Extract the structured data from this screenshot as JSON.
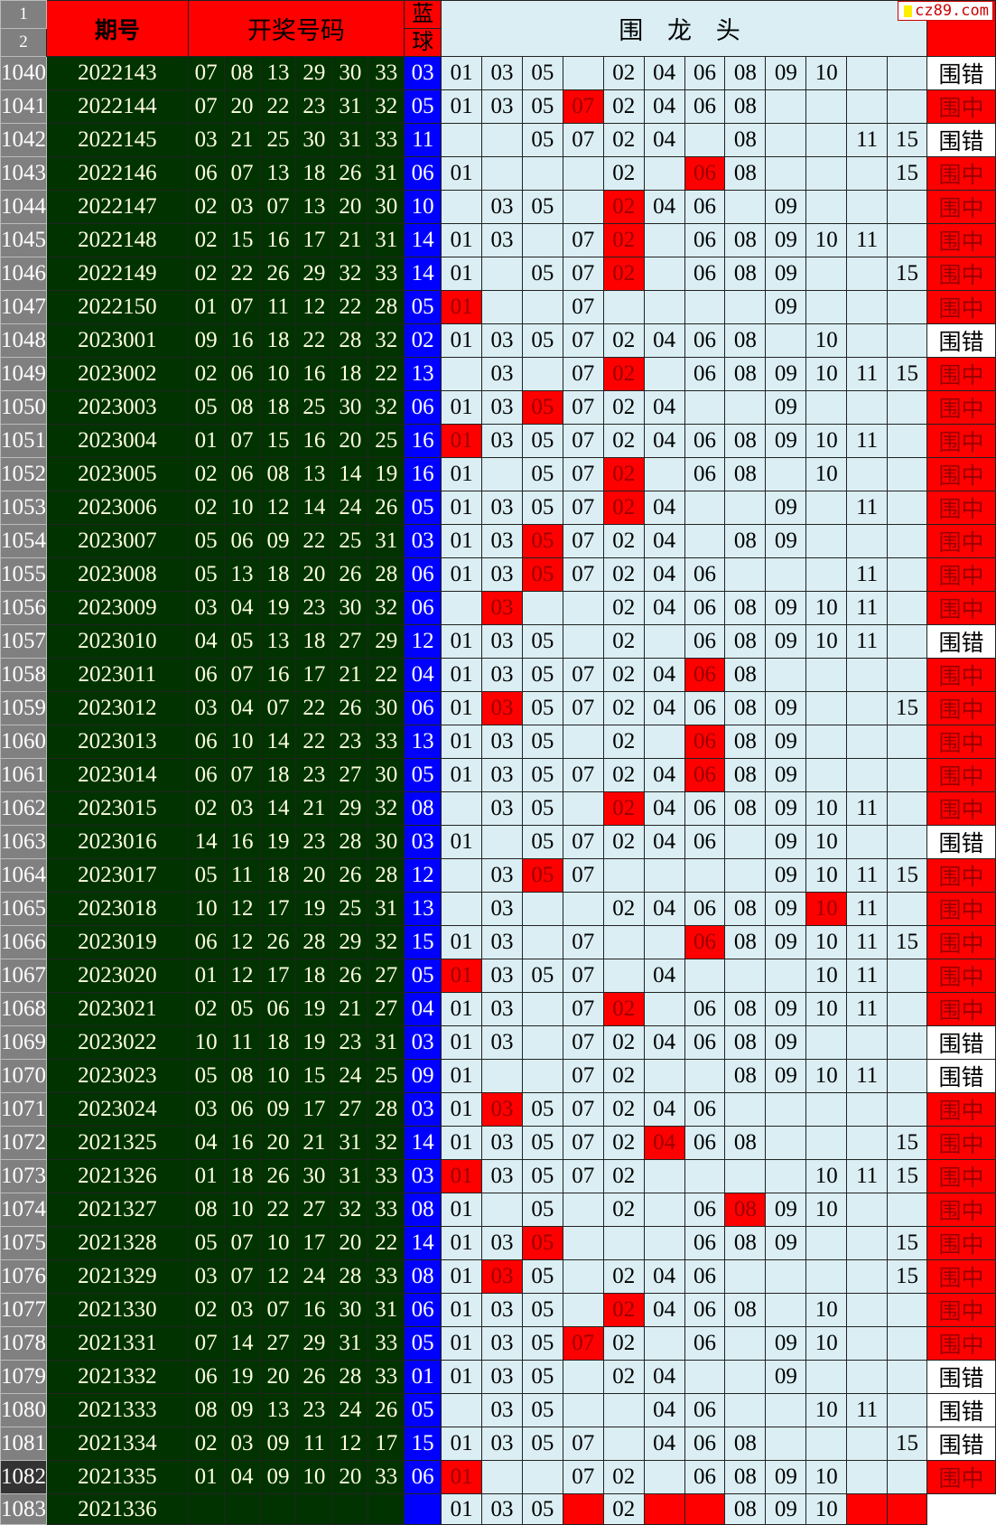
{
  "header": {
    "row_numbers": [
      "1",
      "2"
    ],
    "period": "期号",
    "draw_numbers": "开奖号码",
    "blue_ball_line1": "蓝",
    "blue_ball_line2": "球",
    "wei_long_tou": "围 龙 头"
  },
  "watermark": "cz89.com",
  "colors": {
    "header_red": "#ff0000",
    "period_green": "#003300",
    "blue_ball": "#0000ff",
    "cell_bg": "#daeef3",
    "hit_red": "#ff0000"
  },
  "rows": [
    {
      "n": "1040",
      "period": "2022143",
      "reds": [
        "07",
        "08",
        "13",
        "29",
        "30",
        "33"
      ],
      "blue": "03",
      "cells": [
        "01",
        "03",
        "05",
        "",
        "02",
        "04",
        "06",
        "08",
        "09",
        "10",
        "",
        ""
      ],
      "hits": [],
      "result": "围错"
    },
    {
      "n": "1041",
      "period": "2022144",
      "reds": [
        "07",
        "20",
        "22",
        "23",
        "31",
        "32"
      ],
      "blue": "05",
      "cells": [
        "01",
        "03",
        "05",
        "07",
        "02",
        "04",
        "06",
        "08",
        "",
        "",
        "",
        ""
      ],
      "hits": [
        3
      ],
      "result": "围中"
    },
    {
      "n": "1042",
      "period": "2022145",
      "reds": [
        "03",
        "21",
        "25",
        "30",
        "31",
        "33"
      ],
      "blue": "11",
      "cells": [
        "",
        "",
        "05",
        "07",
        "02",
        "04",
        "",
        "08",
        "",
        "",
        "11",
        "15"
      ],
      "hits": [],
      "result": "围错"
    },
    {
      "n": "1043",
      "period": "2022146",
      "reds": [
        "06",
        "07",
        "13",
        "18",
        "26",
        "31"
      ],
      "blue": "06",
      "cells": [
        "01",
        "",
        "",
        "",
        "02",
        "",
        "06",
        "08",
        "",
        "",
        "",
        "15"
      ],
      "hits": [
        6
      ],
      "result": "围中"
    },
    {
      "n": "1044",
      "period": "2022147",
      "reds": [
        "02",
        "03",
        "07",
        "13",
        "20",
        "30"
      ],
      "blue": "10",
      "cells": [
        "",
        "03",
        "05",
        "",
        "02",
        "04",
        "06",
        "",
        "09",
        "",
        "",
        ""
      ],
      "hits": [
        4
      ],
      "result": "围中"
    },
    {
      "n": "1045",
      "period": "2022148",
      "reds": [
        "02",
        "15",
        "16",
        "17",
        "21",
        "31"
      ],
      "blue": "14",
      "cells": [
        "01",
        "03",
        "",
        "07",
        "02",
        "",
        "06",
        "08",
        "09",
        "10",
        "11",
        ""
      ],
      "hits": [
        4
      ],
      "result": "围中"
    },
    {
      "n": "1046",
      "period": "2022149",
      "reds": [
        "02",
        "22",
        "26",
        "29",
        "32",
        "33"
      ],
      "blue": "14",
      "cells": [
        "01",
        "",
        "05",
        "07",
        "02",
        "",
        "06",
        "08",
        "09",
        "",
        "",
        "15"
      ],
      "hits": [
        4
      ],
      "result": "围中"
    },
    {
      "n": "1047",
      "period": "2022150",
      "reds": [
        "01",
        "07",
        "11",
        "12",
        "22",
        "28"
      ],
      "blue": "05",
      "cells": [
        "01",
        "",
        "",
        "07",
        "",
        "",
        "",
        "",
        "09",
        "",
        "",
        ""
      ],
      "hits": [
        0
      ],
      "result": "围中"
    },
    {
      "n": "1048",
      "period": "2023001",
      "reds": [
        "09",
        "16",
        "18",
        "22",
        "28",
        "32"
      ],
      "blue": "02",
      "cells": [
        "01",
        "03",
        "05",
        "07",
        "02",
        "04",
        "06",
        "08",
        "",
        "10",
        "",
        ""
      ],
      "hits": [],
      "result": "围错"
    },
    {
      "n": "1049",
      "period": "2023002",
      "reds": [
        "02",
        "06",
        "10",
        "16",
        "18",
        "22"
      ],
      "blue": "13",
      "cells": [
        "",
        "03",
        "",
        "07",
        "02",
        "",
        "06",
        "08",
        "09",
        "10",
        "11",
        "15"
      ],
      "hits": [
        4
      ],
      "result": "围中"
    },
    {
      "n": "1050",
      "period": "2023003",
      "reds": [
        "05",
        "08",
        "18",
        "25",
        "30",
        "32"
      ],
      "blue": "06",
      "cells": [
        "01",
        "03",
        "05",
        "07",
        "02",
        "04",
        "",
        "",
        "09",
        "",
        "",
        ""
      ],
      "hits": [
        2
      ],
      "result": "围中"
    },
    {
      "n": "1051",
      "period": "2023004",
      "reds": [
        "01",
        "07",
        "15",
        "16",
        "20",
        "25"
      ],
      "blue": "16",
      "cells": [
        "01",
        "03",
        "05",
        "07",
        "02",
        "04",
        "06",
        "08",
        "09",
        "10",
        "11",
        ""
      ],
      "hits": [
        0
      ],
      "result": "围中"
    },
    {
      "n": "1052",
      "period": "2023005",
      "reds": [
        "02",
        "06",
        "08",
        "13",
        "14",
        "19"
      ],
      "blue": "16",
      "cells": [
        "01",
        "",
        "05",
        "07",
        "02",
        "",
        "06",
        "08",
        "",
        "10",
        "",
        ""
      ],
      "hits": [
        4
      ],
      "result": "围中"
    },
    {
      "n": "1053",
      "period": "2023006",
      "reds": [
        "02",
        "10",
        "12",
        "14",
        "24",
        "26"
      ],
      "blue": "05",
      "cells": [
        "01",
        "03",
        "05",
        "07",
        "02",
        "04",
        "",
        "",
        "09",
        "",
        "11",
        ""
      ],
      "hits": [
        4
      ],
      "result": "围中"
    },
    {
      "n": "1054",
      "period": "2023007",
      "reds": [
        "05",
        "06",
        "09",
        "22",
        "25",
        "31"
      ],
      "blue": "03",
      "cells": [
        "01",
        "03",
        "05",
        "07",
        "02",
        "04",
        "",
        "08",
        "09",
        "",
        "",
        ""
      ],
      "hits": [
        2
      ],
      "result": "围中"
    },
    {
      "n": "1055",
      "period": "2023008",
      "reds": [
        "05",
        "13",
        "18",
        "20",
        "26",
        "28"
      ],
      "blue": "06",
      "cells": [
        "01",
        "03",
        "05",
        "07",
        "02",
        "04",
        "06",
        "",
        "",
        "",
        "11",
        ""
      ],
      "hits": [
        2
      ],
      "result": "围中"
    },
    {
      "n": "1056",
      "period": "2023009",
      "reds": [
        "03",
        "04",
        "19",
        "23",
        "30",
        "32"
      ],
      "blue": "06",
      "cells": [
        "",
        "03",
        "",
        "",
        "02",
        "04",
        "06",
        "08",
        "09",
        "10",
        "11",
        ""
      ],
      "hits": [
        1
      ],
      "result": "围中"
    },
    {
      "n": "1057",
      "period": "2023010",
      "reds": [
        "04",
        "05",
        "13",
        "18",
        "27",
        "29"
      ],
      "blue": "12",
      "cells": [
        "01",
        "03",
        "05",
        "",
        "02",
        "",
        "06",
        "08",
        "09",
        "10",
        "11",
        ""
      ],
      "hits": [],
      "result": "围错"
    },
    {
      "n": "1058",
      "period": "2023011",
      "reds": [
        "06",
        "07",
        "16",
        "17",
        "21",
        "22"
      ],
      "blue": "04",
      "cells": [
        "01",
        "03",
        "05",
        "07",
        "02",
        "04",
        "06",
        "08",
        "",
        "",
        "",
        ""
      ],
      "hits": [
        6
      ],
      "result": "围中"
    },
    {
      "n": "1059",
      "period": "2023012",
      "reds": [
        "03",
        "04",
        "07",
        "22",
        "26",
        "30"
      ],
      "blue": "06",
      "cells": [
        "01",
        "03",
        "05",
        "07",
        "02",
        "04",
        "06",
        "08",
        "09",
        "",
        "",
        "15"
      ],
      "hits": [
        1
      ],
      "result": "围中"
    },
    {
      "n": "1060",
      "period": "2023013",
      "reds": [
        "06",
        "10",
        "14",
        "22",
        "23",
        "33"
      ],
      "blue": "13",
      "cells": [
        "01",
        "03",
        "05",
        "",
        "02",
        "",
        "06",
        "08",
        "09",
        "",
        "",
        ""
      ],
      "hits": [
        6
      ],
      "result": "围中"
    },
    {
      "n": "1061",
      "period": "2023014",
      "reds": [
        "06",
        "07",
        "18",
        "23",
        "27",
        "30"
      ],
      "blue": "05",
      "cells": [
        "01",
        "03",
        "05",
        "07",
        "02",
        "04",
        "06",
        "08",
        "09",
        "",
        "",
        ""
      ],
      "hits": [
        6
      ],
      "result": "围中"
    },
    {
      "n": "1062",
      "period": "2023015",
      "reds": [
        "02",
        "03",
        "14",
        "21",
        "29",
        "32"
      ],
      "blue": "08",
      "cells": [
        "",
        "03",
        "05",
        "",
        "02",
        "04",
        "06",
        "08",
        "09",
        "10",
        "11",
        ""
      ],
      "hits": [
        4
      ],
      "result": "围中"
    },
    {
      "n": "1063",
      "period": "2023016",
      "reds": [
        "14",
        "16",
        "19",
        "23",
        "28",
        "30"
      ],
      "blue": "03",
      "cells": [
        "01",
        "",
        "05",
        "07",
        "02",
        "04",
        "06",
        "",
        "09",
        "10",
        "",
        ""
      ],
      "hits": [],
      "result": "围错"
    },
    {
      "n": "1064",
      "period": "2023017",
      "reds": [
        "05",
        "11",
        "18",
        "20",
        "26",
        "28"
      ],
      "blue": "12",
      "cells": [
        "",
        "03",
        "05",
        "07",
        "",
        "",
        "",
        "",
        "09",
        "10",
        "11",
        "15"
      ],
      "hits": [
        2
      ],
      "result": "围中"
    },
    {
      "n": "1065",
      "period": "2023018",
      "reds": [
        "10",
        "12",
        "17",
        "19",
        "25",
        "31"
      ],
      "blue": "13",
      "cells": [
        "",
        "03",
        "",
        "",
        "02",
        "04",
        "06",
        "08",
        "09",
        "10",
        "11",
        ""
      ],
      "hits": [
        9
      ],
      "result": "围中"
    },
    {
      "n": "1066",
      "period": "2023019",
      "reds": [
        "06",
        "12",
        "26",
        "28",
        "29",
        "32"
      ],
      "blue": "15",
      "cells": [
        "01",
        "03",
        "",
        "07",
        "",
        "",
        "06",
        "08",
        "09",
        "10",
        "11",
        "15"
      ],
      "hits": [
        6
      ],
      "result": "围中"
    },
    {
      "n": "1067",
      "period": "2023020",
      "reds": [
        "01",
        "12",
        "17",
        "18",
        "26",
        "27"
      ],
      "blue": "05",
      "cells": [
        "01",
        "03",
        "05",
        "07",
        "",
        "04",
        "",
        "",
        "",
        "10",
        "11",
        ""
      ],
      "hits": [
        0
      ],
      "result": "围中"
    },
    {
      "n": "1068",
      "period": "2023021",
      "reds": [
        "02",
        "05",
        "06",
        "19",
        "21",
        "27"
      ],
      "blue": "04",
      "cells": [
        "01",
        "03",
        "",
        "07",
        "02",
        "",
        "06",
        "08",
        "09",
        "10",
        "11",
        ""
      ],
      "hits": [
        4
      ],
      "result": "围中"
    },
    {
      "n": "1069",
      "period": "2023022",
      "reds": [
        "10",
        "11",
        "18",
        "19",
        "23",
        "31"
      ],
      "blue": "03",
      "cells": [
        "01",
        "03",
        "",
        "07",
        "02",
        "04",
        "06",
        "08",
        "09",
        "",
        "",
        ""
      ],
      "hits": [],
      "result": "围错"
    },
    {
      "n": "1070",
      "period": "2023023",
      "reds": [
        "05",
        "08",
        "10",
        "15",
        "24",
        "25"
      ],
      "blue": "09",
      "cells": [
        "01",
        "",
        "",
        "07",
        "02",
        "",
        "",
        "08",
        "09",
        "10",
        "11",
        ""
      ],
      "hits": [],
      "result": "围错"
    },
    {
      "n": "1071",
      "period": "2023024",
      "reds": [
        "03",
        "06",
        "09",
        "17",
        "27",
        "28"
      ],
      "blue": "03",
      "cells": [
        "01",
        "03",
        "05",
        "07",
        "02",
        "04",
        "06",
        "",
        "",
        "",
        "",
        ""
      ],
      "hits": [
        1
      ],
      "result": "围中"
    },
    {
      "n": "1072",
      "period": "2021325",
      "reds": [
        "04",
        "16",
        "20",
        "21",
        "31",
        "32"
      ],
      "blue": "14",
      "cells": [
        "01",
        "03",
        "05",
        "07",
        "02",
        "04",
        "06",
        "08",
        "",
        "",
        "",
        "15"
      ],
      "hits": [
        5
      ],
      "result": "围中"
    },
    {
      "n": "1073",
      "period": "2021326",
      "reds": [
        "01",
        "18",
        "26",
        "30",
        "31",
        "33"
      ],
      "blue": "03",
      "cells": [
        "01",
        "03",
        "05",
        "07",
        "02",
        "",
        "",
        "",
        "",
        "10",
        "11",
        "15"
      ],
      "hits": [
        0
      ],
      "result": "围中"
    },
    {
      "n": "1074",
      "period": "2021327",
      "reds": [
        "08",
        "10",
        "22",
        "27",
        "32",
        "33"
      ],
      "blue": "08",
      "cells": [
        "01",
        "",
        "05",
        "",
        "02",
        "",
        "06",
        "08",
        "09",
        "10",
        "",
        ""
      ],
      "hits": [
        7
      ],
      "result": "围中"
    },
    {
      "n": "1075",
      "period": "2021328",
      "reds": [
        "05",
        "07",
        "10",
        "17",
        "20",
        "22"
      ],
      "blue": "14",
      "cells": [
        "01",
        "03",
        "05",
        "",
        "",
        "",
        "06",
        "08",
        "09",
        "",
        "",
        "15"
      ],
      "hits": [
        2
      ],
      "result": "围中"
    },
    {
      "n": "1076",
      "period": "2021329",
      "reds": [
        "03",
        "07",
        "12",
        "24",
        "28",
        "33"
      ],
      "blue": "08",
      "cells": [
        "01",
        "03",
        "05",
        "",
        "02",
        "04",
        "06",
        "",
        "",
        "",
        "",
        "15"
      ],
      "hits": [
        1
      ],
      "result": "围中"
    },
    {
      "n": "1077",
      "period": "2021330",
      "reds": [
        "02",
        "03",
        "07",
        "16",
        "30",
        "31"
      ],
      "blue": "06",
      "cells": [
        "01",
        "03",
        "05",
        "",
        "02",
        "04",
        "06",
        "08",
        "",
        "10",
        "",
        ""
      ],
      "hits": [
        4
      ],
      "result": "围中"
    },
    {
      "n": "1078",
      "period": "2021331",
      "reds": [
        "07",
        "14",
        "27",
        "29",
        "31",
        "33"
      ],
      "blue": "05",
      "cells": [
        "01",
        "03",
        "05",
        "07",
        "02",
        "",
        "06",
        "",
        "09",
        "10",
        "",
        ""
      ],
      "hits": [
        3
      ],
      "result": "围中"
    },
    {
      "n": "1079",
      "period": "2021332",
      "reds": [
        "06",
        "19",
        "20",
        "26",
        "28",
        "33"
      ],
      "blue": "01",
      "cells": [
        "01",
        "03",
        "05",
        "",
        "02",
        "04",
        "",
        "",
        "09",
        "",
        "",
        ""
      ],
      "hits": [],
      "result": "围错"
    },
    {
      "n": "1080",
      "period": "2021333",
      "reds": [
        "08",
        "09",
        "13",
        "23",
        "24",
        "26"
      ],
      "blue": "05",
      "cells": [
        "",
        "03",
        "05",
        "",
        "",
        "04",
        "06",
        "",
        "",
        "10",
        "11",
        ""
      ],
      "hits": [],
      "result": "围错"
    },
    {
      "n": "1081",
      "period": "2021334",
      "reds": [
        "02",
        "03",
        "09",
        "11",
        "12",
        "17"
      ],
      "blue": "15",
      "cells": [
        "01",
        "03",
        "05",
        "07",
        "",
        "04",
        "06",
        "08",
        "",
        "",
        "",
        "15"
      ],
      "hits": [],
      "result": "围错"
    },
    {
      "n": "1082",
      "period": "2021335",
      "reds": [
        "01",
        "04",
        "09",
        "10",
        "20",
        "33"
      ],
      "blue": "06",
      "cells": [
        "01",
        "",
        "",
        "07",
        "02",
        "",
        "06",
        "08",
        "09",
        "10",
        "",
        ""
      ],
      "hits": [
        0
      ],
      "result": "围中",
      "selected": true
    },
    {
      "n": "1083",
      "period": "2021336",
      "reds": [
        "",
        "",
        "",
        "",
        "",
        ""
      ],
      "blue": "",
      "cells": [
        "01",
        "03",
        "05",
        "",
        "02",
        "",
        "",
        "08",
        "09",
        "10",
        "",
        ""
      ],
      "hits": [
        3,
        5,
        6,
        10,
        11
      ],
      "result": ""
    }
  ]
}
